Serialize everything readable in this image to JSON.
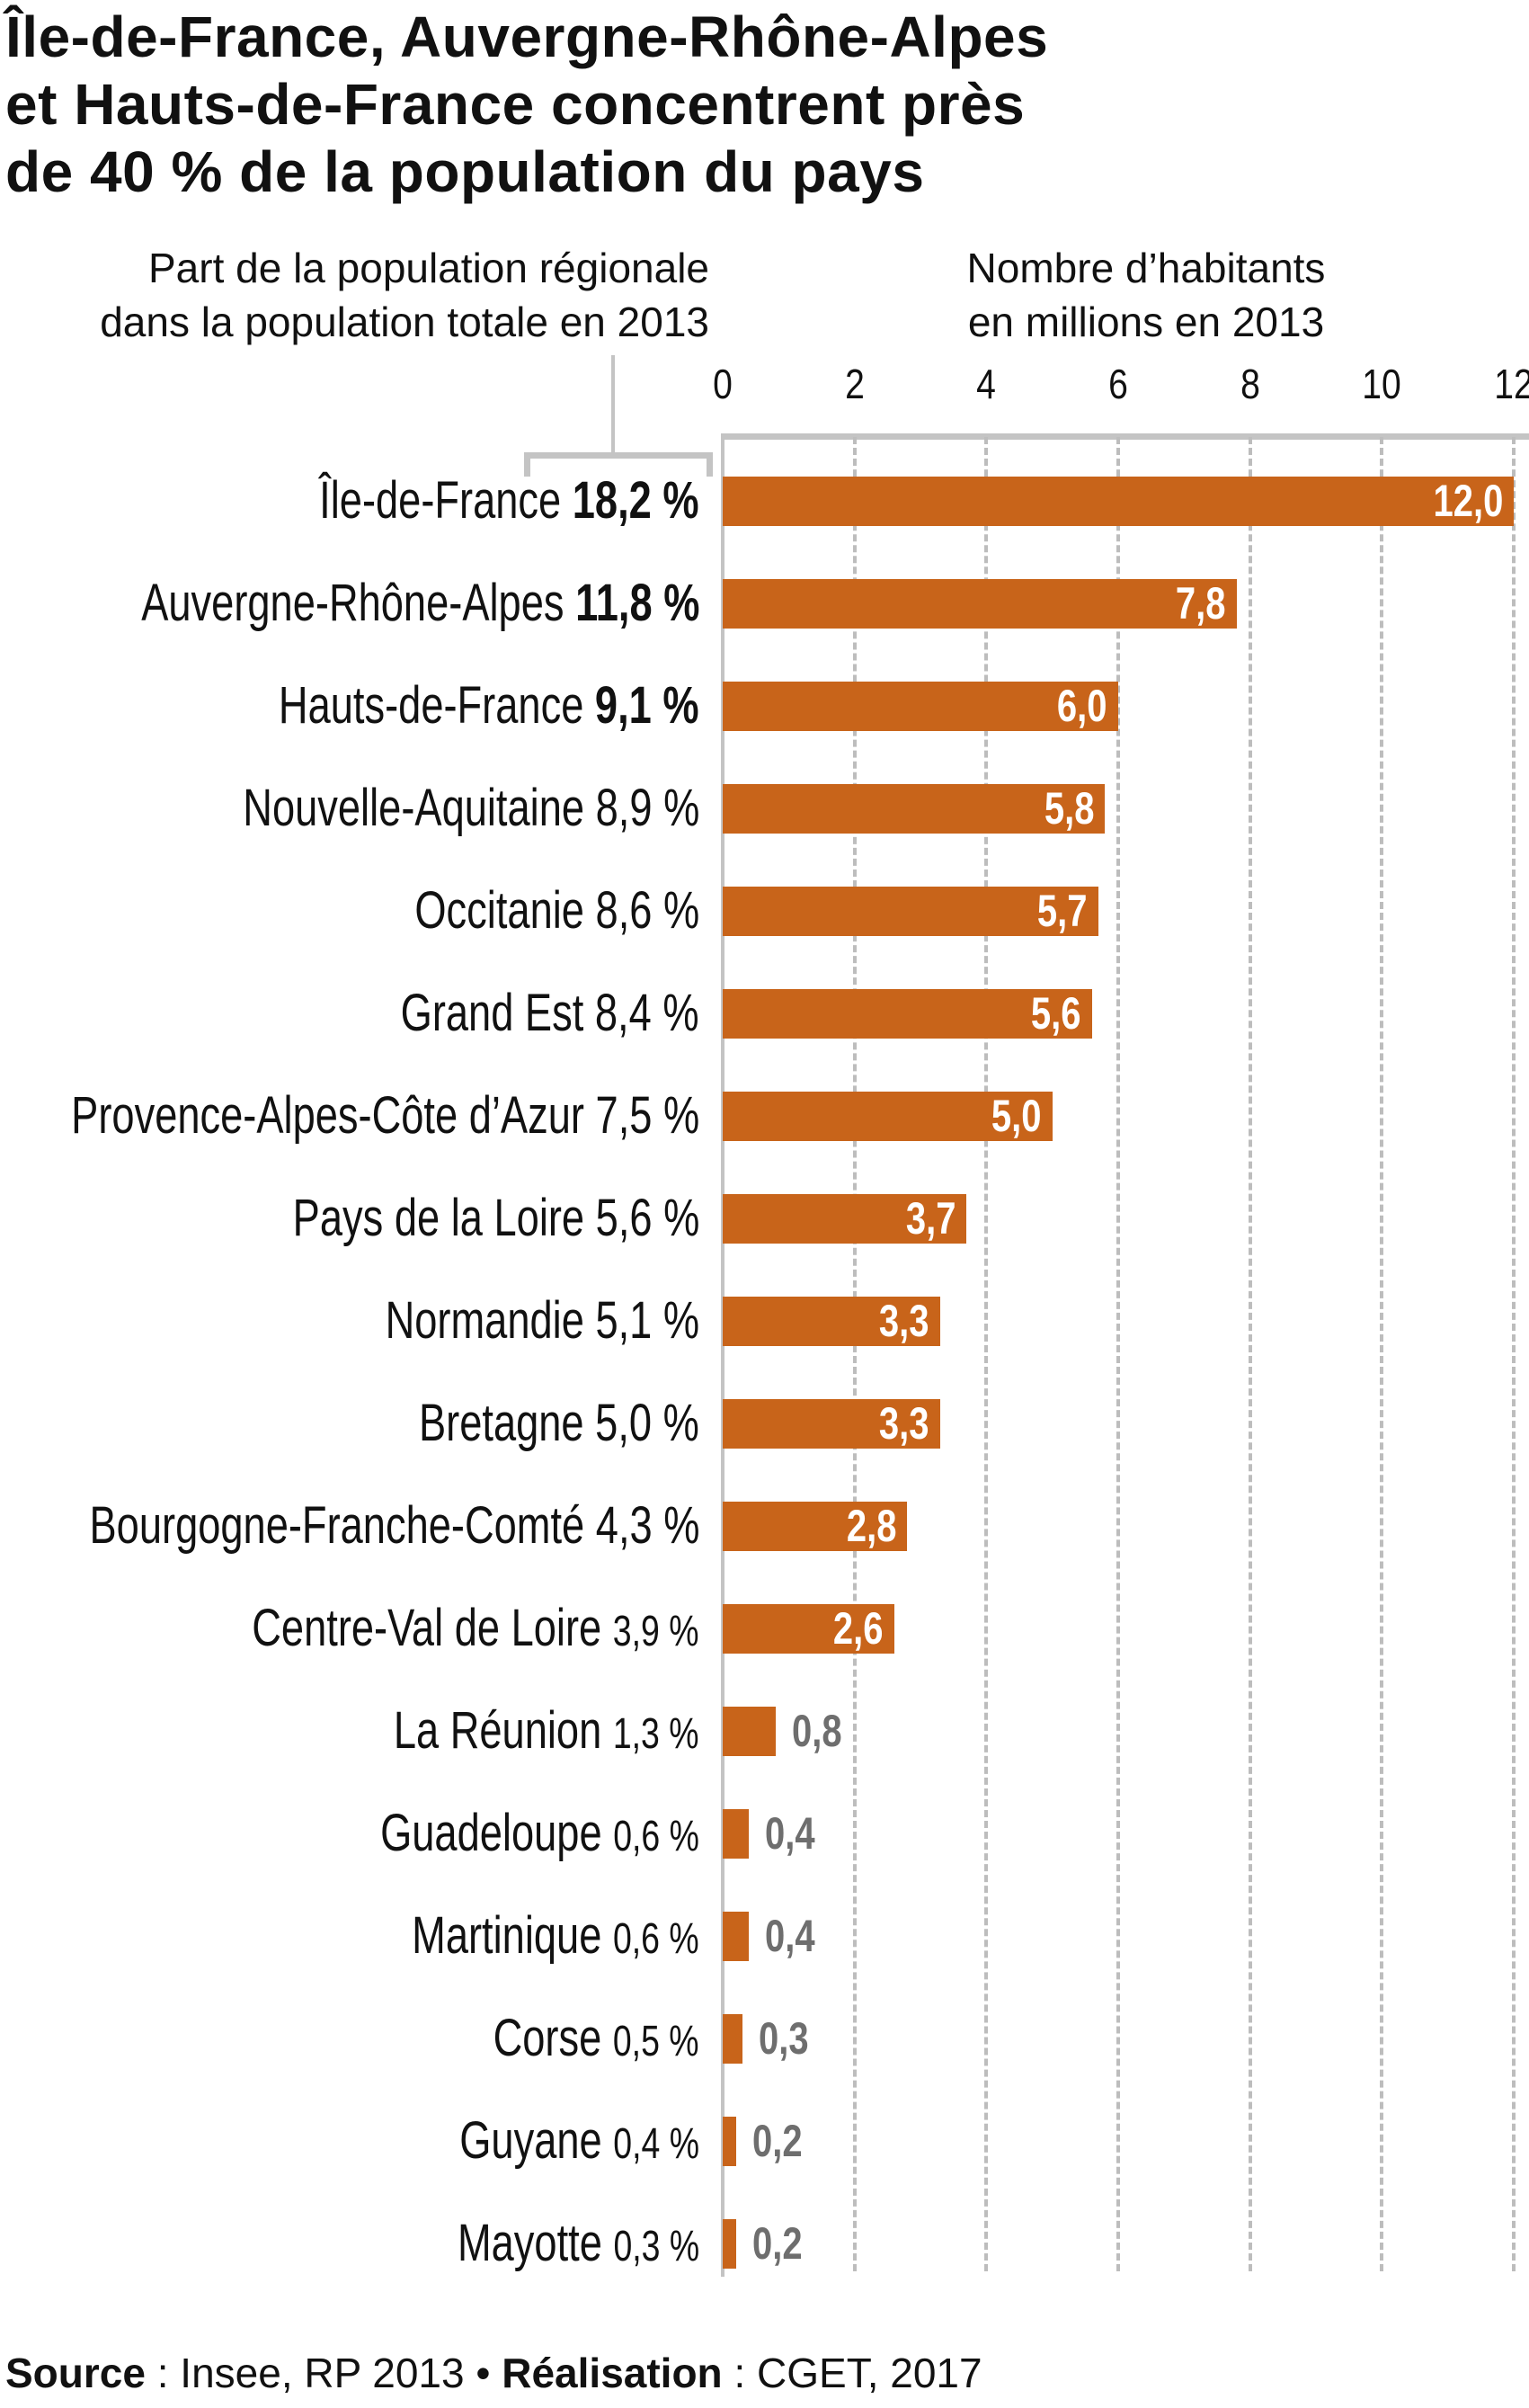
{
  "title": [
    "Île-de-France, Auvergne-Rhône-Alpes",
    "et Hauts-de-France concentrent près",
    "de 40 % de la population du pays"
  ],
  "subtitle_left": [
    "Part de la population régionale",
    "dans la population totale en 2013"
  ],
  "subtitle_right": [
    "Nombre d’habitants",
    "en millions en 2013"
  ],
  "source": {
    "label": "Source",
    "sep1": " : ",
    "value": "Insee, RP 2013",
    "bullet": " • ",
    "credit_label": "Réalisation",
    "sep2": " : ",
    "credit_value": "CGET, 2017"
  },
  "chart_data": {
    "type": "bar",
    "orientation": "horizontal",
    "xlim": [
      0,
      12
    ],
    "xticks": [
      "0",
      "2",
      "4",
      "6",
      "8",
      "10",
      "12"
    ],
    "xtick_values": [
      0,
      2,
      4,
      6,
      8,
      10,
      12
    ],
    "grid": true,
    "bar_color": "#c8641a",
    "categories": [
      "Île-de-France",
      "Auvergne-Rhône-Alpes",
      "Hauts-de-France",
      "Nouvelle-Aquitaine",
      "Occitanie",
      "Grand Est",
      "Provence-Alpes-Côte d’Azur",
      "Pays de la Loire",
      "Normandie",
      "Bretagne",
      "Bourgogne-Franche-Comté",
      "Centre-Val de Loire",
      "La Réunion",
      "Guadeloupe",
      "Martinique",
      "Corse",
      "Guyane",
      "Mayotte"
    ],
    "shares": [
      "18,2 %",
      "11,8 %",
      "9,1 %",
      "8,9 %",
      "8,6 %",
      "8,4 %",
      "7,5 %",
      "5,6 %",
      "5,1 %",
      "5,0 %",
      "4,3 %",
      "3,9 %",
      "1,3 %",
      "0,6 %",
      "0,6 %",
      "0,5 %",
      "0,4 %",
      "0,3 %"
    ],
    "values": [
      12.0,
      7.8,
      6.0,
      5.8,
      5.7,
      5.6,
      5.0,
      3.7,
      3.3,
      3.3,
      2.8,
      2.6,
      0.8,
      0.4,
      0.4,
      0.3,
      0.2,
      0.2
    ],
    "value_labels": [
      "12,0",
      "7,8",
      "6,0",
      "5,8",
      "5,7",
      "5,6",
      "5,0",
      "3,7",
      "3,3",
      "3,3",
      "2,8",
      "2,6",
      "0,8",
      "0,4",
      "0,4",
      "0,3",
      "0,2",
      "0,2"
    ]
  }
}
